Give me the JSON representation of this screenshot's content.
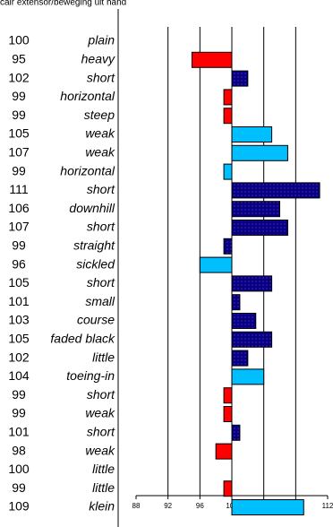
{
  "chart_data": {
    "type": "bar",
    "orientation": "horizontal",
    "title": "cair extensor/beweging uit hand",
    "categories": [
      "plain",
      "heavy",
      "short",
      "horizontal",
      "steep",
      "weak",
      "weak",
      "horizontal",
      "short",
      "downhill",
      "short",
      "straight",
      "sickled",
      "short",
      "small",
      "course",
      "faded black",
      "little",
      "toeing-in",
      "short",
      "weak",
      "short",
      "weak",
      "little",
      "little",
      "klein"
    ],
    "values": [
      100,
      95,
      102,
      99,
      99,
      105,
      107,
      99,
      111,
      106,
      107,
      99,
      96,
      105,
      101,
      103,
      105,
      102,
      104,
      99,
      99,
      101,
      98,
      100,
      99,
      109
    ],
    "colors": [
      "#ff0000",
      "#ff0000",
      "#00008b",
      "#ff0000",
      "#ff0000",
      "#00bfff",
      "#00bfff",
      "#00bfff",
      "#00008b",
      "#00008b",
      "#00008b",
      "#00008b",
      "#00bfff",
      "#00008b",
      "#00008b",
      "#00008b",
      "#00008b",
      "#00008b",
      "#00bfff",
      "#ff0000",
      "#ff0000",
      "#00008b",
      "#ff0000",
      "#ff0000",
      "#ff0000",
      "#00bfff"
    ],
    "dots": [
      false,
      false,
      true,
      false,
      false,
      false,
      false,
      false,
      true,
      true,
      true,
      true,
      false,
      true,
      true,
      true,
      true,
      true,
      false,
      false,
      false,
      true,
      false,
      false,
      false,
      false
    ],
    "base": 100,
    "xlim": [
      88,
      112
    ],
    "xticks": [
      88,
      92,
      96,
      100,
      104,
      108,
      112
    ],
    "grid": true
  }
}
